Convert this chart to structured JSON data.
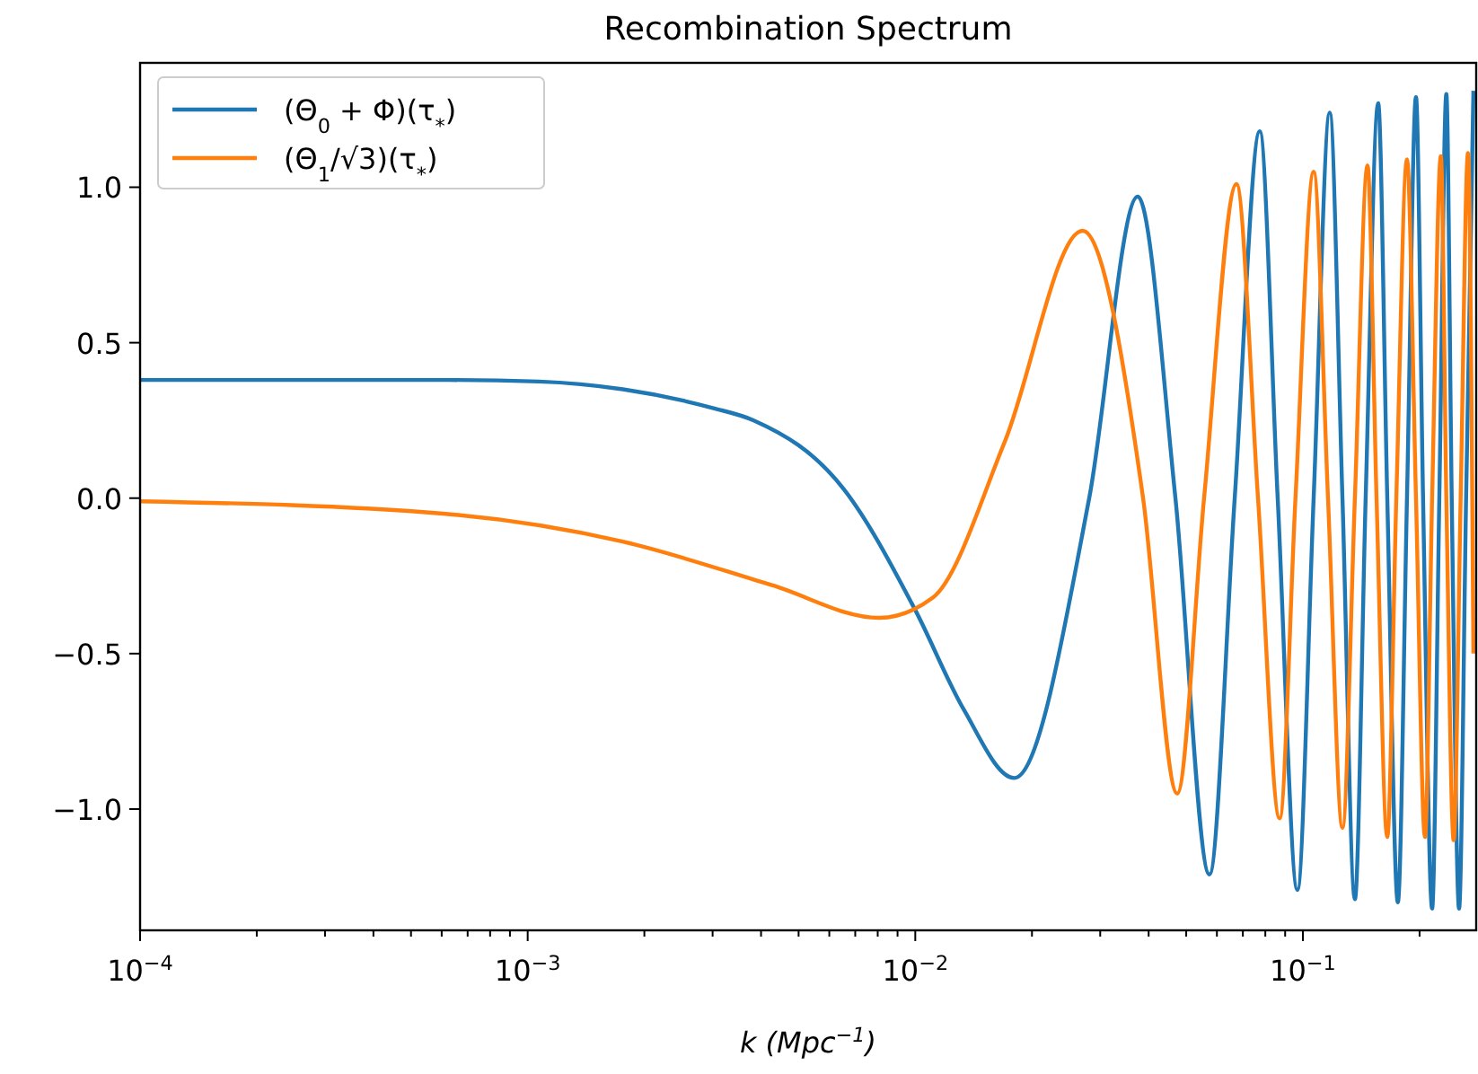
{
  "chart_data": {
    "type": "line",
    "title": "Recombination Spectrum",
    "xlabel": "k (Mpc$^{−1}$)",
    "log": "x",
    "legend": "top left",
    "grid": false,
    "xlim": [
      0.0001,
      0.28
    ],
    "ylim": [
      -1.39,
      1.4
    ],
    "xticks": [
      {
        "value": 0.0001,
        "label": "10$^{−4}$"
      },
      {
        "value": 0.0002,
        "label": null
      },
      {
        "value": 0.0003,
        "label": null
      },
      {
        "value": 0.0004,
        "label": null
      },
      {
        "value": 0.0005,
        "label": null
      },
      {
        "value": 0.0006,
        "label": null
      },
      {
        "value": 0.0007,
        "label": null
      },
      {
        "value": 0.0008,
        "label": null
      },
      {
        "value": 0.0009,
        "label": null
      },
      {
        "value": 0.001,
        "label": "10$^{−3}$"
      },
      {
        "value": 0.002,
        "label": null
      },
      {
        "value": 0.003,
        "label": null
      },
      {
        "value": 0.004,
        "label": null
      },
      {
        "value": 0.005,
        "label": null
      },
      {
        "value": 0.006,
        "label": null
      },
      {
        "value": 0.007,
        "label": null
      },
      {
        "value": 0.008,
        "label": null
      },
      {
        "value": 0.009,
        "label": null
      },
      {
        "value": 0.01,
        "label": "10$^{−2}$"
      },
      {
        "value": 0.02,
        "label": null
      },
      {
        "value": 0.03,
        "label": null
      },
      {
        "value": 0.04,
        "label": null
      },
      {
        "value": 0.05,
        "label": null
      },
      {
        "value": 0.06,
        "label": null
      },
      {
        "value": 0.07,
        "label": null
      },
      {
        "value": 0.08,
        "label": null
      },
      {
        "value": 0.09,
        "label": null
      },
      {
        "value": 0.1,
        "label": "10$^{−1}$"
      },
      {
        "value": 0.2,
        "label": null
      }
    ],
    "yticks": [
      {
        "value": -1,
        "label": "−1.0"
      },
      {
        "value": -0.5,
        "label": "−0.5"
      },
      {
        "value": 0,
        "label": "0.0"
      },
      {
        "value": 0.5,
        "label": "0.5"
      },
      {
        "value": 1,
        "label": "1.0"
      }
    ],
    "series": [
      {
        "name": "(Θ$_{0}$ + Φ)(τ$_{*}$)",
        "color": "#1f77b4",
        "x": [
          0.0001,
          0.000625,
          0.00107,
          0.00176,
          0.003,
          0.00383,
          0.00653,
          0.01,
          0.01334,
          0.018,
          0.0281,
          0.0375,
          0.0469,
          0.0574,
          0.0667,
          0.0774,
          0.0861,
          0.0968,
          0.1066,
          0.1173,
          0.1265,
          0.1362,
          0.1452,
          0.1564,
          0.1651,
          0.1758,
          0.1856,
          0.1958,
          0.2042,
          0.2155,
          0.2249,
          0.2345,
          0.2421,
          0.2529,
          0.2637,
          0.2754
        ],
        "values": [
          0.38,
          0.38,
          0.375,
          0.35,
          0.29,
          0.25,
          0.03,
          -0.36,
          -0.68,
          -0.9,
          0,
          0.97,
          0,
          -1.21,
          0,
          1.18,
          0,
          -1.26,
          0,
          1.24,
          0,
          -1.29,
          0,
          1.27,
          0,
          -1.3,
          0,
          1.29,
          0,
          -1.32,
          0,
          1.3,
          0,
          -1.32,
          0,
          1.31
        ]
      },
      {
        "name": "(Θ$_{1}$/√3)(τ$_{*}$)",
        "color": "#ff7f0e",
        "x": [
          0.0001,
          0.000605,
          0.00176,
          0.00427,
          0.00807,
          0.0111,
          0.017,
          0.027,
          0.0387,
          0.0474,
          0.0556,
          0.0674,
          0.0766,
          0.0871,
          0.0957,
          0.1066,
          0.1161,
          0.1265,
          0.1362,
          0.1468,
          0.1549,
          0.1651,
          0.1742,
          0.1856,
          0.1958,
          0.2065,
          0.2155,
          0.227,
          0.2345,
          0.2449,
          0.2553,
          0.2667,
          0.2754
        ],
        "values": [
          -0.01,
          -0.05,
          -0.14,
          -0.28,
          -0.385,
          -0.32,
          0.18,
          0.86,
          0,
          -0.95,
          0,
          1.01,
          0,
          -1.03,
          0,
          1.05,
          0,
          -1.06,
          0,
          1.07,
          0,
          -1.09,
          0,
          1.09,
          0,
          -1.09,
          0,
          1.1,
          0,
          -1.1,
          0,
          1.11,
          -0.5
        ]
      }
    ]
  }
}
